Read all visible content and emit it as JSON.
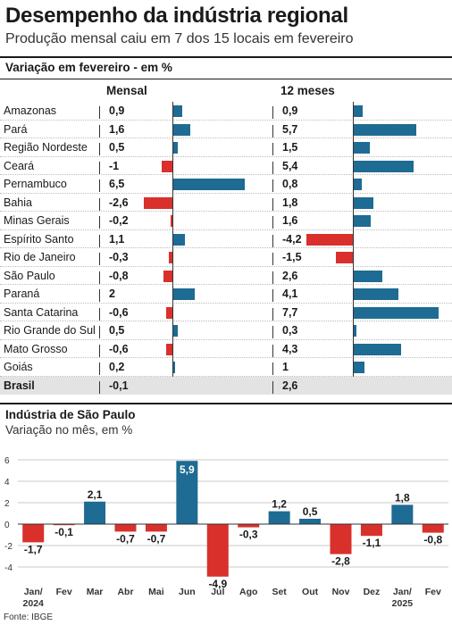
{
  "header": {
    "title": "Desempenho da indústria regional",
    "subtitle": "Produção mensal caiu em 7 dos 15 locais em fevereiro"
  },
  "table_section": {
    "title": "Variação em fevereiro - em %",
    "col_monthly": "Mensal",
    "col_12m": "12 meses"
  },
  "colors": {
    "positive": "#1e6b93",
    "negative": "#d9302c",
    "total_row": "#e3e3e3"
  },
  "chart_data": [
    {
      "type": "bar",
      "title": "Variação em fevereiro - em %",
      "categories": [
        "Amazonas",
        "Pará",
        "Região Nordeste",
        "Ceará",
        "Pernambuco",
        "Bahia",
        "Minas Gerais",
        "Espírito Santo",
        "Rio de Janeiro",
        "São Paulo",
        "Paraná",
        "Santa Catarina",
        "Rio Grande do Sul",
        "Mato Grosso",
        "Goiás",
        "Brasil"
      ],
      "series": [
        {
          "name": "Mensal",
          "values": [
            0.9,
            1.6,
            0.5,
            -1,
            6.5,
            -2.6,
            -0.2,
            1.1,
            -0.3,
            -0.8,
            2,
            -0.6,
            0.5,
            -0.6,
            0.2,
            -0.1
          ],
          "labels": [
            "0,9",
            "1,6",
            "0,5",
            "-1",
            "6,5",
            "-2,6",
            "-0,2",
            "1,1",
            "-0,3",
            "-0,8",
            "2",
            "-0,6",
            "0,5",
            "-0,6",
            "0,2",
            "-0,1"
          ]
        },
        {
          "name": "12 meses",
          "values": [
            0.9,
            5.7,
            1.5,
            5.4,
            0.8,
            1.8,
            1.6,
            -4.2,
            -1.5,
            2.6,
            4.1,
            7.7,
            0.3,
            4.3,
            1,
            2.6
          ],
          "labels": [
            "0,9",
            "5,7",
            "1,5",
            "5,4",
            "0,8",
            "1,8",
            "1,6",
            "-4,2",
            "-1,5",
            "2,6",
            "4,1",
            "7,7",
            "0,3",
            "4,3",
            "1",
            "2,6"
          ]
        }
      ]
    },
    {
      "type": "bar",
      "title": "Indústria de São Paulo",
      "subtitle": "Variação no mês, em %",
      "categories": [
        [
          "Jan/",
          "2024"
        ],
        [
          "Fev"
        ],
        [
          "Mar"
        ],
        [
          "Abr"
        ],
        [
          "Mai"
        ],
        [
          "Jun"
        ],
        [
          "Jul"
        ],
        [
          "Ago"
        ],
        [
          "Set"
        ],
        [
          "Out"
        ],
        [
          "Nov"
        ],
        [
          "Dez"
        ],
        [
          "Jan/",
          "2025"
        ],
        [
          "Fev"
        ]
      ],
      "values": [
        -1.7,
        -0.1,
        2.1,
        -0.7,
        -0.7,
        5.9,
        -4.9,
        -0.3,
        1.2,
        0.5,
        -2.8,
        -1.1,
        1.8,
        -0.8
      ],
      "labels": [
        "-1,7",
        "-0,1",
        "2,1",
        "-0,7",
        "-0,7",
        "5,9",
        "-4,9",
        "-0,3",
        "1,2",
        "0,5",
        "-2,8",
        "-1,1",
        "1,8",
        "-0,8"
      ],
      "ylim": [
        -6,
        6
      ],
      "yticks": [
        "-4",
        "-2",
        "0",
        "2",
        "4",
        "6"
      ],
      "grid": true
    }
  ],
  "source": "Fonte: IBGE"
}
